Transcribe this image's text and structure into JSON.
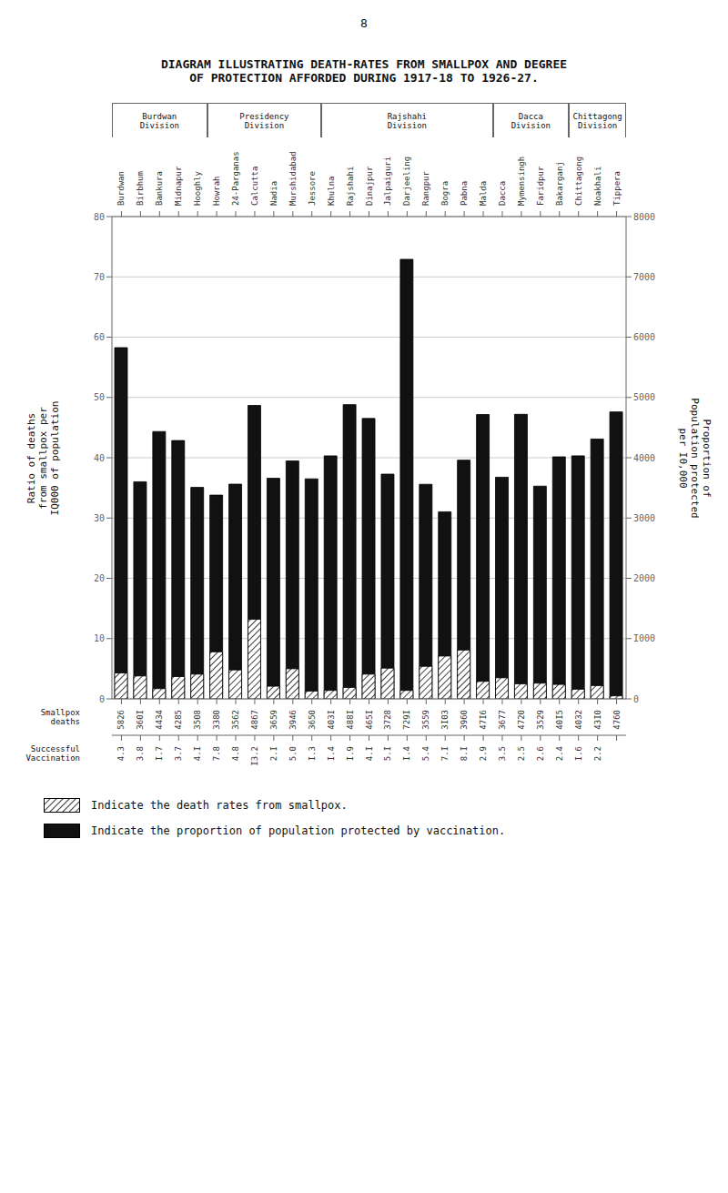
{
  "chart_data": {
    "type": "bar",
    "title": "DIAGRAM ILLUSTRATING DEATH-RATES FROM SMALLPOX AND DEGREE\nOF PROTECTION AFFORDED DURING 1917-18 TO 1926-27.",
    "annotations": [
      "8",
      "Smallpox\ndeaths",
      "Successful\nVaccination"
    ],
    "ylabel": "Ratio of deaths\nfrom smallpox per\nIQ000 of population",
    "y2label": "Proportion of\nPopulation protected\nper I0,000",
    "categories": [
      "Burdwan",
      "Birbhum",
      "Bankura",
      "Midnapur",
      "Hooghly",
      "Howrah",
      "24-Parganas",
      "Calcutta",
      "Nadia",
      "Murshidabad",
      "Jessore",
      "Khulna",
      "Rajshahi",
      "Dinajpur",
      "Jalpaiguri",
      "Darjeeling",
      "Rangpur",
      "Bogra",
      "Pabna",
      "Malda",
      "Dacca",
      "Mymensingh",
      "Faridpur",
      "Bakarganj",
      "Chittagong",
      "Noakhali",
      "Tippera"
    ],
    "divisions": [
      {
        "name": "Burdwan\nDivision",
        "categories": [
          "Burdwan",
          "Birbhum",
          "Bankura",
          "Midnapur",
          "Hooghly"
        ]
      },
      {
        "name": "Presidency\nDivision",
        "categories": [
          "Howrah",
          "24-Parganas",
          "Calcutta",
          "Nadia",
          "Murshidabad",
          "Jessore"
        ]
      },
      {
        "name": "Rajshahi\nDivision",
        "categories": [
          "Khulna",
          "Rajshahi",
          "Dinajpur",
          "Jalpaiguri",
          "Darjeeling",
          "Rangpur",
          "Bogra",
          "Pabna",
          "Malda"
        ]
      },
      {
        "name": "Dacca\nDivision",
        "categories": [
          "Dacca",
          "Mymensingh",
          "Faridpur",
          "Bakarganj"
        ]
      },
      {
        "name": "Chittagong\nDivision",
        "categories": [
          "Chittagong",
          "Noakhali",
          "Tippera"
        ]
      }
    ],
    "series": [
      {
        "name": "Indicate the death rates from smallpox.",
        "values": [
          4.3,
          3.8,
          1.7,
          3.7,
          4.1,
          7.8,
          4.8,
          13.2,
          2.1,
          5.0,
          1.3,
          1.4,
          1.9,
          4.1,
          5.1,
          1.4,
          5.4,
          7.1,
          8.1,
          2.9,
          3.5,
          2.5,
          2.6,
          2.4,
          1.6,
          2.2,
          0.5
        ],
        "value_labels": [
          "4.3",
          "3.8",
          "I.7",
          "3.7",
          "4.I",
          "7.8",
          "4.8",
          "I3.2",
          "2.I",
          "5.0",
          "I.3",
          "I.4",
          "I.9",
          "4.I",
          "5.I",
          "I.4",
          "5.4",
          "7.I",
          "8.I",
          "2.9",
          "3.5",
          "2.5",
          "2.6",
          "2.4",
          "I.6",
          "2.2",
          null
        ]
      },
      {
        "name": "Indicate the proportion of population protected by vaccination.",
        "color": "#111111",
        "axis": "y2",
        "values": [
          5826,
          3601,
          4434,
          4285,
          3508,
          3380,
          3562,
          4867,
          3659,
          3946,
          3650,
          4031,
          4881,
          4651,
          3728,
          7291,
          3559,
          3103,
          3960,
          4716,
          3677,
          4720,
          3529,
          4015,
          4032,
          4310,
          4760
        ],
        "value_labels": [
          "5826",
          "360I",
          "4434",
          "4285",
          "3508",
          "3380",
          "3562",
          "4867",
          "3659",
          "3946",
          "3650",
          "403I",
          "488I",
          "465I",
          "3728",
          "729I",
          "3559",
          "3I03",
          "3960",
          "47I6",
          "3677",
          "4720",
          "3529",
          "40I5",
          "4032",
          "43I0",
          "4760"
        ]
      }
    ],
    "ylim": [
      0,
      80
    ],
    "yticks": [
      0,
      10,
      20,
      30,
      40,
      50,
      60,
      70,
      80
    ],
    "y2lim": [
      0,
      8000
    ],
    "y2ticks": [
      0,
      {
        "value": 1000,
        "label": "I000"
      },
      {
        "value": 2000,
        "label": "2000"
      },
      {
        "value": 3000,
        "label": "3000"
      },
      {
        "value": 4000,
        "label": "4000"
      },
      {
        "value": 5000,
        "label": "5000"
      },
      {
        "value": 6000,
        "label": "6000"
      },
      {
        "value": 7000,
        "label": "7000"
      },
      {
        "value": 8000,
        "label": "8000"
      }
    ],
    "grid": true,
    "data_labels": true
  }
}
